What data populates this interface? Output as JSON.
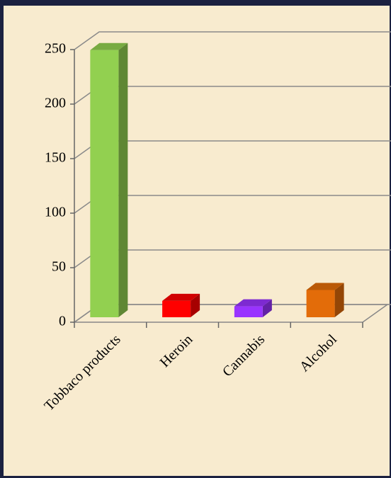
{
  "chart_data": {
    "type": "bar3d",
    "categories": [
      "Tobbaco products",
      "Heroin",
      "Cannabis",
      "Alcohol"
    ],
    "values": [
      245,
      15,
      10,
      25
    ],
    "colors": [
      "#92d050",
      "#ff0000",
      "#9933ff",
      "#e36c09"
    ],
    "ylim": [
      0,
      250
    ],
    "yticks": [
      0,
      50,
      100,
      150,
      200,
      250
    ],
    "grid": true
  }
}
